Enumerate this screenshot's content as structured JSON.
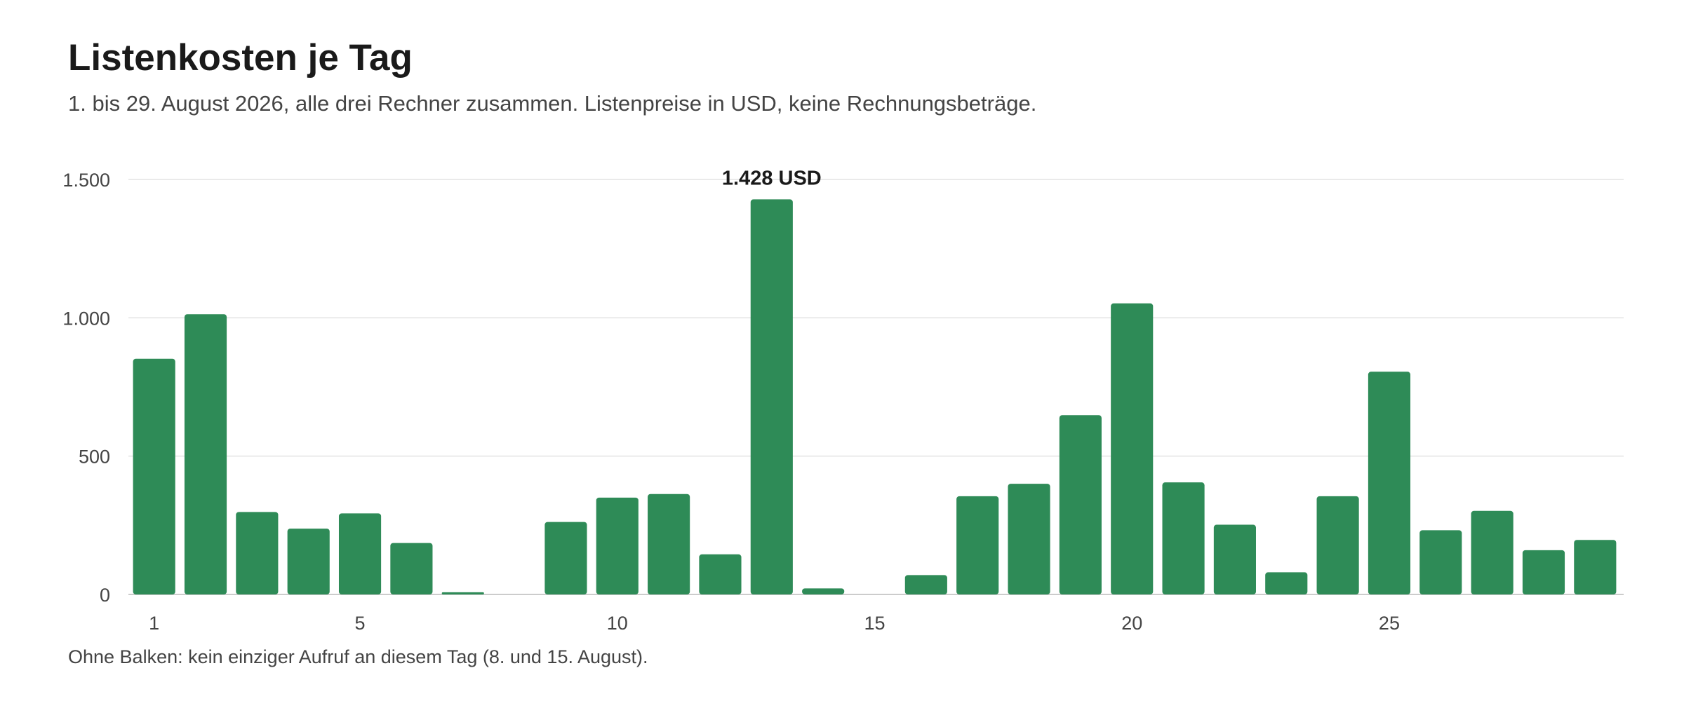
{
  "chart_data": {
    "type": "bar",
    "title": "Listenkosten je Tag",
    "subtitle": "1. bis 29. August 2026, alle drei Rechner zusammen. Listenpreise in USD, keine Rechnungsbeträge.",
    "xlabel": "",
    "ylabel": "",
    "footnote": "Ohne Balken: kein einziger Aufruf an diesem Tag (8. und 15. August).",
    "categories": [
      1,
      2,
      3,
      4,
      5,
      6,
      7,
      8,
      9,
      10,
      11,
      12,
      13,
      14,
      15,
      16,
      17,
      18,
      19,
      20,
      21,
      22,
      23,
      24,
      25,
      26,
      27,
      28,
      29
    ],
    "x_tick_labels": [
      "1",
      "5",
      "10",
      "15",
      "20",
      "25"
    ],
    "x_tick_values": [
      1,
      5,
      10,
      15,
      20,
      25
    ],
    "values": [
      852,
      1013,
      298,
      238,
      293,
      186,
      8,
      null,
      262,
      350,
      363,
      145,
      1428,
      22,
      null,
      70,
      355,
      400,
      648,
      1052,
      405,
      252,
      80,
      355,
      805,
      232,
      302,
      160,
      197
    ],
    "ylim": [
      0,
      1500
    ],
    "y_ticks": [
      0,
      500,
      1000,
      1500
    ],
    "y_tick_labels": [
      "0",
      "500",
      "1.000",
      "1.500"
    ],
    "annotation": {
      "category": 13,
      "text": "1.428 USD"
    },
    "grid": true,
    "bar_color": "#2e8b57",
    "grid_color": "#e3e3e3",
    "axis_color": "#cccccc"
  }
}
